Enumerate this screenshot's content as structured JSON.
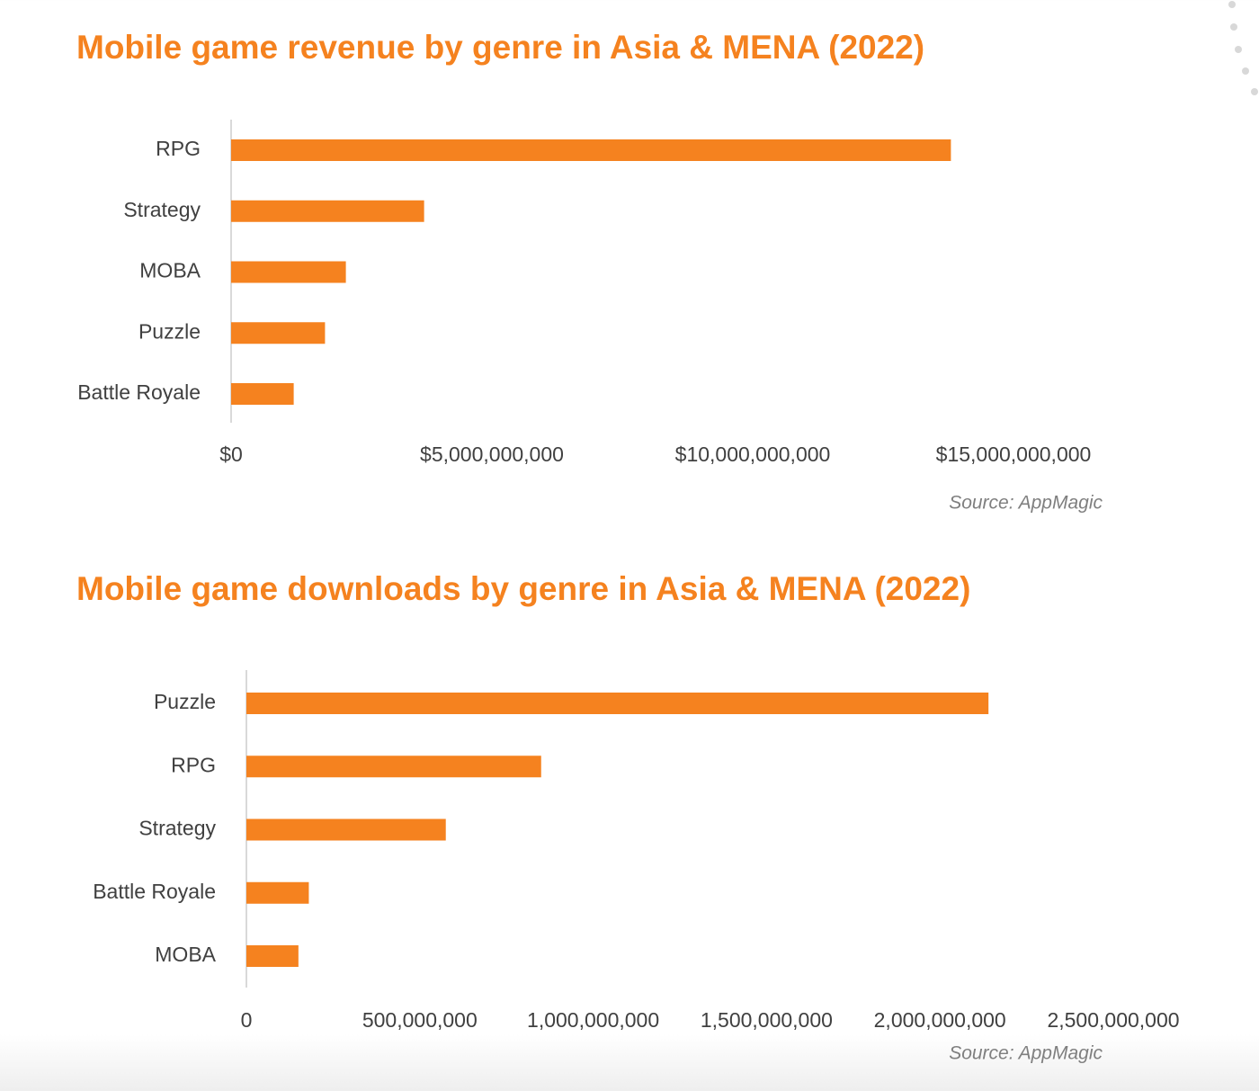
{
  "chart_data": [
    {
      "type": "bar",
      "orientation": "horizontal",
      "title": "Mobile game revenue by genre in Asia & MENA (2022)",
      "source": "Source: AppMagic",
      "categories": [
        "RPG",
        "Strategy",
        "MOBA",
        "Puzzle",
        "Battle Royale"
      ],
      "values": [
        13800000000,
        3700000000,
        2200000000,
        1800000000,
        1200000000
      ],
      "color": "#f5821f",
      "xlim": [
        0,
        15000000000
      ],
      "xticks": [
        {
          "value": 0,
          "label": "$0"
        },
        {
          "value": 5000000000,
          "label": "$5,000,000,000"
        },
        {
          "value": 10000000000,
          "label": "$10,000,000,000"
        },
        {
          "value": 15000000000,
          "label": "$15,000,000,000"
        }
      ]
    },
    {
      "type": "bar",
      "orientation": "horizontal",
      "title": "Mobile game downloads by genre in Asia & MENA (2022)",
      "source": "Source: AppMagic",
      "categories": [
        "Puzzle",
        "RPG",
        "Strategy",
        "Battle Royale",
        "MOBA"
      ],
      "values": [
        2140000000,
        850000000,
        575000000,
        180000000,
        150000000
      ],
      "color": "#f5821f",
      "xlim": [
        0,
        2500000000
      ],
      "xticks": [
        0,
        {
          "value": 500000000,
          "label": "500,000,000"
        },
        {
          "value": 1000000000,
          "label": "1,000,000,000"
        },
        {
          "value": 1500000000,
          "label": "1,500,000,000"
        },
        {
          "value": 2000000000,
          "label": "2,000,000,000"
        },
        {
          "value": 2500000000,
          "label": "2,500,000,000"
        }
      ]
    }
  ]
}
